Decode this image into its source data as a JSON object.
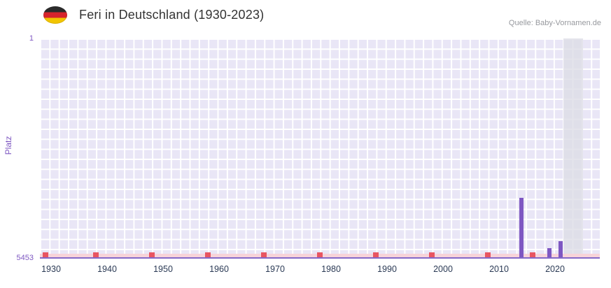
{
  "header": {
    "flag_icon": "germany-flag-icon",
    "title": "Feri in Deutschland (1930-2023)",
    "source": "Quelle: Baby-Vornamen.de"
  },
  "chart_data": {
    "type": "bar",
    "title": "Feri in Deutschland (1930-2023)",
    "xlabel": "",
    "ylabel": "Platz",
    "grid": true,
    "legend": false,
    "y_axis": {
      "min": 1,
      "max": 5453,
      "inverted": true,
      "top_tick_label": "1",
      "bottom_tick_label": "5453"
    },
    "x_axis": {
      "min": 1928,
      "max": 2028,
      "ticks": [
        1930,
        1940,
        1950,
        1960,
        1970,
        1980,
        1990,
        2000,
        2010,
        2020
      ]
    },
    "bars": [
      {
        "year": 2014,
        "rank": 3980
      },
      {
        "year": 2019,
        "rank": 5230
      },
      {
        "year": 2021,
        "rank": 5060
      }
    ],
    "no_data_marker_years": [
      1929,
      1938,
      1948,
      1958,
      1968,
      1978,
      1988,
      1998,
      2008,
      2016
    ],
    "highlight_band": {
      "from": 2021.5,
      "to": 2025
    },
    "colors": {
      "bar": "#7e57c2",
      "plot_bg": "#e9e6f6",
      "grid": "#ffffff",
      "band": "#dddde6",
      "marker": "#e85562",
      "marker_strip": "#f7d3d9",
      "axis_label": "#7e57c2",
      "tick_label": "#2b3a55",
      "baseline": "#8468c8",
      "title": "#333333",
      "source": "#97999e"
    }
  }
}
